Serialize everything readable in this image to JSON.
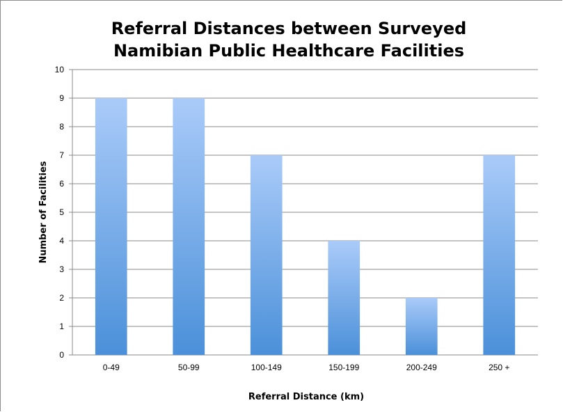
{
  "chart_data": {
    "type": "bar",
    "title_lines": [
      "Referral Distances between Surveyed",
      "Namibian Public Healthcare Facilities"
    ],
    "xlabel": "Referral Distance (km)",
    "ylabel": "Number of Facilities",
    "categories": [
      "0-49",
      "50-99",
      "100-149",
      "150-199",
      "200-249",
      "250 +"
    ],
    "values": [
      9,
      9,
      7,
      4,
      2,
      7
    ],
    "ylim": [
      0,
      10
    ],
    "yticks": [
      "0",
      "1",
      "2",
      "3",
      "4",
      "5",
      "6",
      "7",
      "8",
      "9",
      "10"
    ],
    "grid": true,
    "legend": "none",
    "colors": {
      "bar_top": "#aacbf9",
      "bar_bottom": "#4b90d9",
      "grid": "#8a8a8a"
    }
  }
}
